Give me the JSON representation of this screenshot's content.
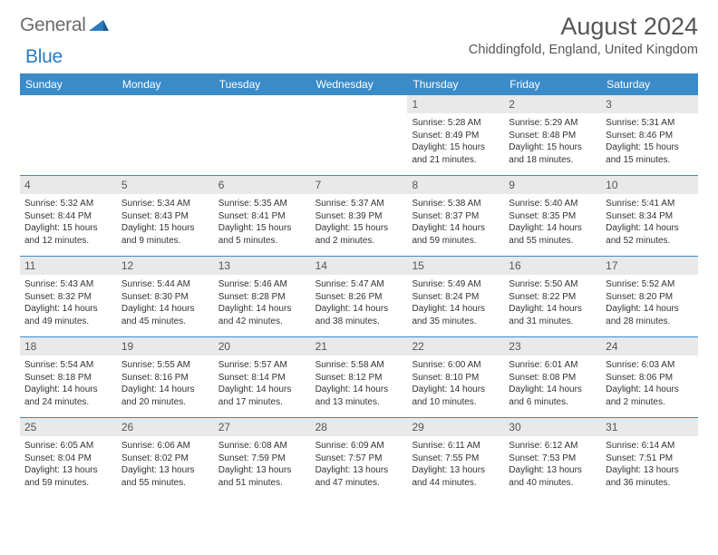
{
  "logo": {
    "word1": "General",
    "word2": "Blue"
  },
  "title": "August 2024",
  "location": "Chiddingfold, England, United Kingdom",
  "colors": {
    "header_blue": "#3b8bc9",
    "daynum_bg": "#e9e9e9",
    "text": "#333333",
    "logo_gray": "#6b6b6b",
    "logo_blue": "#2b7bbf"
  },
  "weekdays": [
    "Sunday",
    "Monday",
    "Tuesday",
    "Wednesday",
    "Thursday",
    "Friday",
    "Saturday"
  ],
  "weeks": [
    [
      null,
      null,
      null,
      null,
      {
        "n": "1",
        "sunrise": "5:28 AM",
        "sunset": "8:49 PM",
        "daylight": "15 hours and 21 minutes."
      },
      {
        "n": "2",
        "sunrise": "5:29 AM",
        "sunset": "8:48 PM",
        "daylight": "15 hours and 18 minutes."
      },
      {
        "n": "3",
        "sunrise": "5:31 AM",
        "sunset": "8:46 PM",
        "daylight": "15 hours and 15 minutes."
      }
    ],
    [
      {
        "n": "4",
        "sunrise": "5:32 AM",
        "sunset": "8:44 PM",
        "daylight": "15 hours and 12 minutes."
      },
      {
        "n": "5",
        "sunrise": "5:34 AM",
        "sunset": "8:43 PM",
        "daylight": "15 hours and 9 minutes."
      },
      {
        "n": "6",
        "sunrise": "5:35 AM",
        "sunset": "8:41 PM",
        "daylight": "15 hours and 5 minutes."
      },
      {
        "n": "7",
        "sunrise": "5:37 AM",
        "sunset": "8:39 PM",
        "daylight": "15 hours and 2 minutes."
      },
      {
        "n": "8",
        "sunrise": "5:38 AM",
        "sunset": "8:37 PM",
        "daylight": "14 hours and 59 minutes."
      },
      {
        "n": "9",
        "sunrise": "5:40 AM",
        "sunset": "8:35 PM",
        "daylight": "14 hours and 55 minutes."
      },
      {
        "n": "10",
        "sunrise": "5:41 AM",
        "sunset": "8:34 PM",
        "daylight": "14 hours and 52 minutes."
      }
    ],
    [
      {
        "n": "11",
        "sunrise": "5:43 AM",
        "sunset": "8:32 PM",
        "daylight": "14 hours and 49 minutes."
      },
      {
        "n": "12",
        "sunrise": "5:44 AM",
        "sunset": "8:30 PM",
        "daylight": "14 hours and 45 minutes."
      },
      {
        "n": "13",
        "sunrise": "5:46 AM",
        "sunset": "8:28 PM",
        "daylight": "14 hours and 42 minutes."
      },
      {
        "n": "14",
        "sunrise": "5:47 AM",
        "sunset": "8:26 PM",
        "daylight": "14 hours and 38 minutes."
      },
      {
        "n": "15",
        "sunrise": "5:49 AM",
        "sunset": "8:24 PM",
        "daylight": "14 hours and 35 minutes."
      },
      {
        "n": "16",
        "sunrise": "5:50 AM",
        "sunset": "8:22 PM",
        "daylight": "14 hours and 31 minutes."
      },
      {
        "n": "17",
        "sunrise": "5:52 AM",
        "sunset": "8:20 PM",
        "daylight": "14 hours and 28 minutes."
      }
    ],
    [
      {
        "n": "18",
        "sunrise": "5:54 AM",
        "sunset": "8:18 PM",
        "daylight": "14 hours and 24 minutes."
      },
      {
        "n": "19",
        "sunrise": "5:55 AM",
        "sunset": "8:16 PM",
        "daylight": "14 hours and 20 minutes."
      },
      {
        "n": "20",
        "sunrise": "5:57 AM",
        "sunset": "8:14 PM",
        "daylight": "14 hours and 17 minutes."
      },
      {
        "n": "21",
        "sunrise": "5:58 AM",
        "sunset": "8:12 PM",
        "daylight": "14 hours and 13 minutes."
      },
      {
        "n": "22",
        "sunrise": "6:00 AM",
        "sunset": "8:10 PM",
        "daylight": "14 hours and 10 minutes."
      },
      {
        "n": "23",
        "sunrise": "6:01 AM",
        "sunset": "8:08 PM",
        "daylight": "14 hours and 6 minutes."
      },
      {
        "n": "24",
        "sunrise": "6:03 AM",
        "sunset": "8:06 PM",
        "daylight": "14 hours and 2 minutes."
      }
    ],
    [
      {
        "n": "25",
        "sunrise": "6:05 AM",
        "sunset": "8:04 PM",
        "daylight": "13 hours and 59 minutes."
      },
      {
        "n": "26",
        "sunrise": "6:06 AM",
        "sunset": "8:02 PM",
        "daylight": "13 hours and 55 minutes."
      },
      {
        "n": "27",
        "sunrise": "6:08 AM",
        "sunset": "7:59 PM",
        "daylight": "13 hours and 51 minutes."
      },
      {
        "n": "28",
        "sunrise": "6:09 AM",
        "sunset": "7:57 PM",
        "daylight": "13 hours and 47 minutes."
      },
      {
        "n": "29",
        "sunrise": "6:11 AM",
        "sunset": "7:55 PM",
        "daylight": "13 hours and 44 minutes."
      },
      {
        "n": "30",
        "sunrise": "6:12 AM",
        "sunset": "7:53 PM",
        "daylight": "13 hours and 40 minutes."
      },
      {
        "n": "31",
        "sunrise": "6:14 AM",
        "sunset": "7:51 PM",
        "daylight": "13 hours and 36 minutes."
      }
    ]
  ],
  "labels": {
    "sunrise": "Sunrise: ",
    "sunset": "Sunset: ",
    "daylight": "Daylight: "
  }
}
